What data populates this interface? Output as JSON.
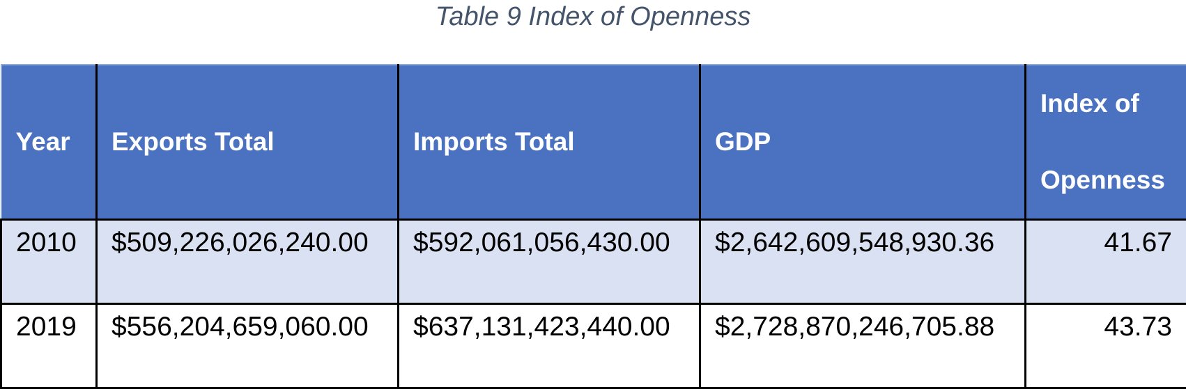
{
  "caption": "Table 9 Index of Openness",
  "table": {
    "headers": [
      "Year",
      "Exports Total",
      "Imports Total",
      "GDP",
      "Index of Openness"
    ],
    "rows": [
      [
        "2010",
        "$509,226,026,240.00",
        "$592,061,056,430.00",
        "$2,642,609,548,930.36",
        "41.67"
      ],
      [
        "2019",
        "$556,204,659,060.00",
        "$637,131,423,440.00",
        "$2,728,870,246,705.88",
        "43.73"
      ]
    ]
  },
  "colors": {
    "header_background": "#4a72c0",
    "header_text": "#ffffff",
    "banded_row": "#d9e1f2",
    "caption_text": "#44546a"
  }
}
